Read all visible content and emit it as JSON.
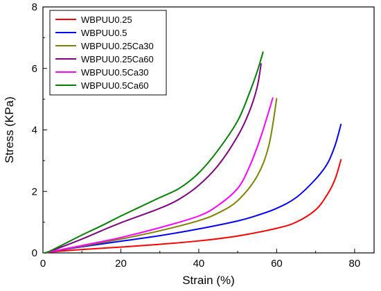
{
  "chart_data": {
    "type": "line",
    "title": "",
    "xlabel": "Strain (%)",
    "ylabel": "Stress (KPa)",
    "xlim": [
      0,
      85
    ],
    "ylim": [
      0,
      8
    ],
    "x_ticks": [
      0,
      20,
      40,
      60,
      80
    ],
    "y_ticks": [
      0,
      2,
      4,
      6,
      8
    ],
    "grid": false,
    "legend_position": "top-left",
    "series": [
      {
        "name": "WBPUU0.25",
        "color": "#ff0000",
        "points": [
          [
            0.5,
            0
          ],
          [
            2,
            0.03
          ],
          [
            10,
            0.11
          ],
          [
            20,
            0.19
          ],
          [
            30,
            0.28
          ],
          [
            40,
            0.39
          ],
          [
            50,
            0.55
          ],
          [
            60,
            0.8
          ],
          [
            65,
            1.0
          ],
          [
            70,
            1.4
          ],
          [
            73,
            1.9
          ],
          [
            75,
            2.4
          ],
          [
            76.5,
            3.03
          ]
        ]
      },
      {
        "name": "WBPUU0.5",
        "color": "#0000ff",
        "points": [
          [
            0.5,
            0
          ],
          [
            2,
            0.04
          ],
          [
            10,
            0.2
          ],
          [
            20,
            0.38
          ],
          [
            30,
            0.56
          ],
          [
            40,
            0.78
          ],
          [
            50,
            1.04
          ],
          [
            55,
            1.22
          ],
          [
            60,
            1.45
          ],
          [
            65,
            1.8
          ],
          [
            70,
            2.4
          ],
          [
            73,
            2.9
          ],
          [
            75,
            3.5
          ],
          [
            76.5,
            4.18
          ]
        ]
      },
      {
        "name": "WBPUU0.25Ca30",
        "color": "#808000",
        "points": [
          [
            0.5,
            0
          ],
          [
            2,
            0.04
          ],
          [
            10,
            0.22
          ],
          [
            20,
            0.45
          ],
          [
            30,
            0.72
          ],
          [
            40,
            1.05
          ],
          [
            45,
            1.3
          ],
          [
            50,
            1.7
          ],
          [
            55,
            2.5
          ],
          [
            58,
            3.5
          ],
          [
            60,
            5.02
          ]
        ]
      },
      {
        "name": "WBPUU0.25Ca60",
        "color": "#800080",
        "points": [
          [
            0.5,
            0
          ],
          [
            2,
            0.06
          ],
          [
            10,
            0.45
          ],
          [
            15,
            0.72
          ],
          [
            20,
            0.98
          ],
          [
            30,
            1.45
          ],
          [
            35,
            1.75
          ],
          [
            40,
            2.2
          ],
          [
            45,
            2.85
          ],
          [
            50,
            3.8
          ],
          [
            53,
            4.6
          ],
          [
            55,
            5.4
          ],
          [
            56,
            6.15
          ]
        ]
      },
      {
        "name": "WBPUU0.5Ca30",
        "color": "#ff00ff",
        "points": [
          [
            0.5,
            0
          ],
          [
            2,
            0.04
          ],
          [
            10,
            0.24
          ],
          [
            20,
            0.5
          ],
          [
            30,
            0.82
          ],
          [
            40,
            1.2
          ],
          [
            45,
            1.55
          ],
          [
            50,
            2.1
          ],
          [
            53,
            2.8
          ],
          [
            56,
            3.8
          ],
          [
            59,
            5.04
          ]
        ]
      },
      {
        "name": "WBPUU0.5Ca60",
        "color": "#008000",
        "points": [
          [
            0.5,
            0
          ],
          [
            2,
            0.07
          ],
          [
            10,
            0.58
          ],
          [
            15,
            0.88
          ],
          [
            20,
            1.2
          ],
          [
            25,
            1.5
          ],
          [
            30,
            1.8
          ],
          [
            35,
            2.1
          ],
          [
            40,
            2.6
          ],
          [
            45,
            3.35
          ],
          [
            50,
            4.3
          ],
          [
            53,
            5.2
          ],
          [
            55,
            5.9
          ],
          [
            56.5,
            6.53
          ]
        ]
      }
    ]
  }
}
